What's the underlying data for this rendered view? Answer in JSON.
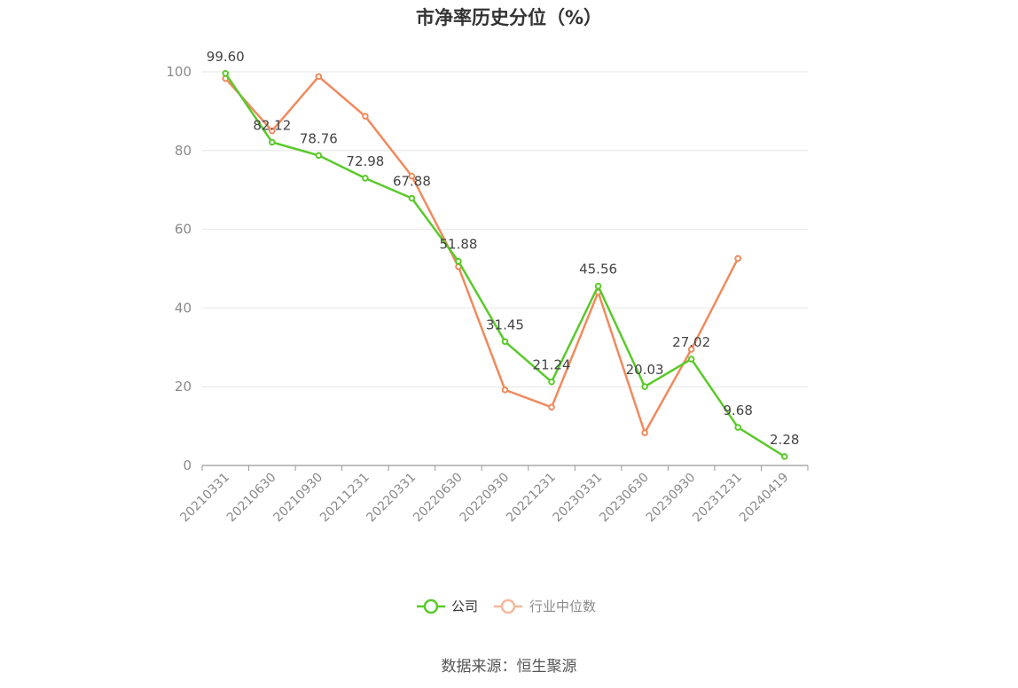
{
  "title": "市净率历史分位（%）",
  "source": "数据来源：恒生聚源",
  "colors": {
    "company": "#5ac92a",
    "industry": "#f08a5d",
    "industry_legend": "#f6b89c",
    "grid": "#e6e6e6",
    "axis": "#999999"
  },
  "chart_data": {
    "type": "line",
    "categories": [
      "20210331",
      "20210630",
      "20210930",
      "20211231",
      "20220331",
      "20220630",
      "20220930",
      "20221231",
      "20230331",
      "20230630",
      "20230930",
      "20231231",
      "20240419"
    ],
    "ylim": [
      0,
      100
    ],
    "yticks": [
      0,
      20,
      40,
      60,
      80,
      100
    ],
    "grid": true,
    "legend_position": "bottom",
    "series": [
      {
        "name": "公司",
        "values": [
          99.6,
          82.12,
          78.76,
          72.98,
          67.88,
          51.88,
          31.45,
          21.24,
          45.56,
          20.03,
          27.02,
          9.68,
          2.28
        ],
        "labels": [
          "99.60",
          "82.12",
          "78.76",
          "72.98",
          "67.88",
          "51.88",
          "31.45",
          "21.24",
          "45.56",
          "20.03",
          "27.02",
          "9.68",
          "2.28"
        ]
      },
      {
        "name": "行业中位数",
        "values": [
          98.3,
          85.0,
          98.8,
          88.7,
          73.5,
          50.5,
          19.2,
          14.8,
          44.0,
          8.3,
          29.5,
          52.6,
          null
        ]
      }
    ]
  }
}
